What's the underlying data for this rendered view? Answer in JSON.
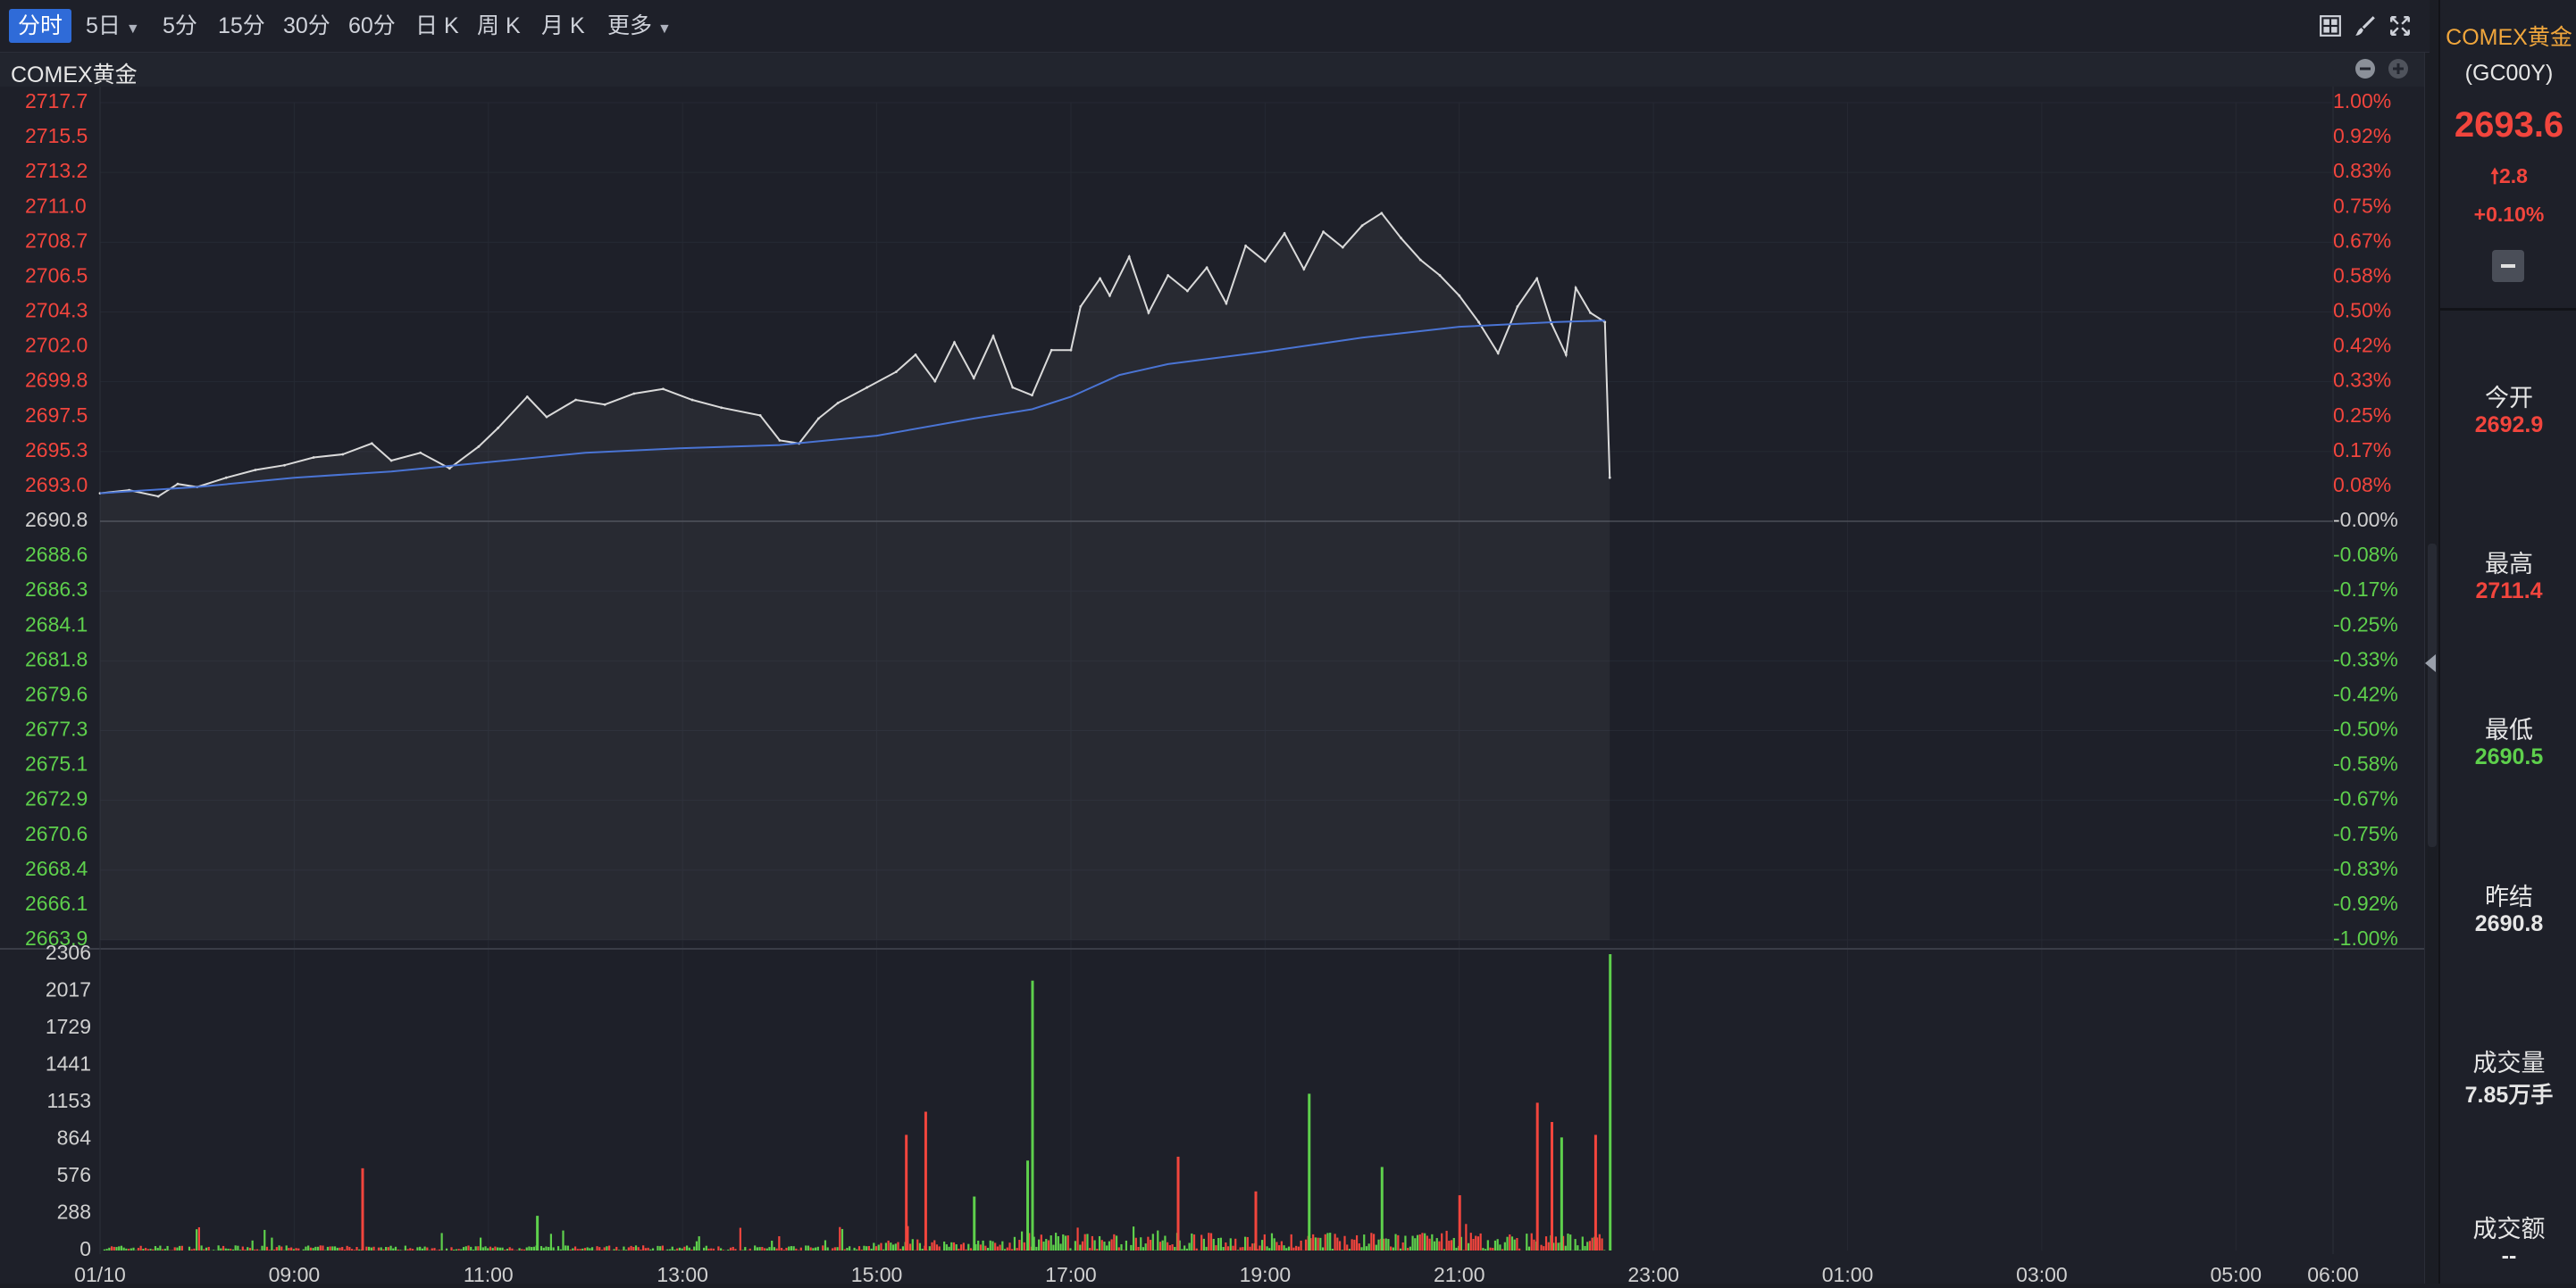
{
  "toolbar": {
    "intervals": [
      "分时",
      "5日",
      "5分",
      "15分",
      "30分",
      "60分",
      "日 K",
      "周 K",
      "月 K",
      "更多"
    ],
    "active": "分时",
    "icons": [
      "grid-icon",
      "brush-icon",
      "fullscreen-icon"
    ]
  },
  "chart_header": {
    "title": "COMEX黄金",
    "icons": [
      "zoom-out-icon",
      "zoom-in-icon"
    ]
  },
  "colors": {
    "up": "#f2453d",
    "down": "#5ed04c",
    "price_line": "#dadada",
    "avg_line": "#4a74d4",
    "accent": "#2f6bd8",
    "title_accent": "#f0a63c"
  },
  "chart_data": {
    "type": "line",
    "price_axis": {
      "ticks_up": [
        "2717.7",
        "2715.5",
        "2713.2",
        "2711.0",
        "2708.7",
        "2706.5",
        "2704.3",
        "2702.0",
        "2699.8",
        "2697.5",
        "2695.3",
        "2693.0"
      ],
      "tick_mid": "2690.8",
      "ticks_down": [
        "2688.6",
        "2686.3",
        "2684.1",
        "2681.8",
        "2679.6",
        "2677.3",
        "2675.1",
        "2672.9",
        "2670.6",
        "2668.4",
        "2666.1",
        "2663.9"
      ],
      "ylim": [
        2663.9,
        2717.7
      ]
    },
    "pct_axis": {
      "ticks_up": [
        "1.00%",
        "0.92%",
        "0.83%",
        "0.75%",
        "0.67%",
        "0.58%",
        "0.50%",
        "0.42%",
        "0.33%",
        "0.25%",
        "0.17%",
        "0.08%"
      ],
      "tick_mid": "-0.00%",
      "ticks_down": [
        "-0.08%",
        "-0.17%",
        "-0.25%",
        "-0.33%",
        "-0.42%",
        "-0.50%",
        "-0.58%",
        "-0.67%",
        "-0.75%",
        "-0.83%",
        "-0.92%",
        "-1.00%"
      ]
    },
    "volume_axis": {
      "ticks": [
        "2306",
        "2017",
        "1729",
        "1441",
        "1153",
        "864",
        "576",
        "288",
        "0"
      ],
      "ylim": [
        0,
        2306
      ]
    },
    "x_labels": [
      "01/10",
      "09:00",
      "11:00",
      "13:00",
      "15:00",
      "17:00",
      "19:00",
      "21:00",
      "23:00",
      "01:00",
      "03:00",
      "05:00",
      "06:00"
    ],
    "x_hours": [
      7,
      9,
      11,
      13,
      15,
      17,
      19,
      21,
      23,
      25,
      27,
      29,
      30
    ],
    "x_range_hours": [
      7,
      30
    ],
    "price_series": [
      {
        "t": 7.0,
        "p": 2692.6
      },
      {
        "t": 7.3,
        "p": 2692.8
      },
      {
        "t": 7.6,
        "p": 2692.4
      },
      {
        "t": 7.8,
        "p": 2693.2
      },
      {
        "t": 8.0,
        "p": 2693.0
      },
      {
        "t": 8.3,
        "p": 2693.6
      },
      {
        "t": 8.6,
        "p": 2694.1
      },
      {
        "t": 8.9,
        "p": 2694.4
      },
      {
        "t": 9.2,
        "p": 2694.9
      },
      {
        "t": 9.5,
        "p": 2695.1
      },
      {
        "t": 9.8,
        "p": 2695.8
      },
      {
        "t": 10.0,
        "p": 2694.7
      },
      {
        "t": 10.3,
        "p": 2695.2
      },
      {
        "t": 10.6,
        "p": 2694.2
      },
      {
        "t": 10.9,
        "p": 2695.6
      },
      {
        "t": 11.1,
        "p": 2696.8
      },
      {
        "t": 11.4,
        "p": 2698.8
      },
      {
        "t": 11.6,
        "p": 2697.5
      },
      {
        "t": 11.9,
        "p": 2698.6
      },
      {
        "t": 12.2,
        "p": 2698.3
      },
      {
        "t": 12.5,
        "p": 2699.0
      },
      {
        "t": 12.8,
        "p": 2699.3
      },
      {
        "t": 13.1,
        "p": 2698.6
      },
      {
        "t": 13.4,
        "p": 2698.1
      },
      {
        "t": 13.8,
        "p": 2697.6
      },
      {
        "t": 14.0,
        "p": 2696.0
      },
      {
        "t": 14.2,
        "p": 2695.8
      },
      {
        "t": 14.4,
        "p": 2697.4
      },
      {
        "t": 14.6,
        "p": 2698.4
      },
      {
        "t": 14.9,
        "p": 2699.4
      },
      {
        "t": 15.2,
        "p": 2700.4
      },
      {
        "t": 15.4,
        "p": 2701.5
      },
      {
        "t": 15.6,
        "p": 2699.8
      },
      {
        "t": 15.8,
        "p": 2702.3
      },
      {
        "t": 16.0,
        "p": 2700.0
      },
      {
        "t": 16.2,
        "p": 2702.7
      },
      {
        "t": 16.4,
        "p": 2699.4
      },
      {
        "t": 16.6,
        "p": 2698.9
      },
      {
        "t": 16.8,
        "p": 2701.8
      },
      {
        "t": 17.0,
        "p": 2701.8
      },
      {
        "t": 17.1,
        "p": 2704.6
      },
      {
        "t": 17.3,
        "p": 2706.4
      },
      {
        "t": 17.4,
        "p": 2705.3
      },
      {
        "t": 17.6,
        "p": 2707.8
      },
      {
        "t": 17.8,
        "p": 2704.2
      },
      {
        "t": 18.0,
        "p": 2706.6
      },
      {
        "t": 18.2,
        "p": 2705.6
      },
      {
        "t": 18.4,
        "p": 2707.1
      },
      {
        "t": 18.6,
        "p": 2704.8
      },
      {
        "t": 18.8,
        "p": 2708.5
      },
      {
        "t": 19.0,
        "p": 2707.5
      },
      {
        "t": 19.2,
        "p": 2709.3
      },
      {
        "t": 19.4,
        "p": 2707.0
      },
      {
        "t": 19.6,
        "p": 2709.4
      },
      {
        "t": 19.8,
        "p": 2708.4
      },
      {
        "t": 20.0,
        "p": 2709.8
      },
      {
        "t": 20.2,
        "p": 2710.6
      },
      {
        "t": 20.4,
        "p": 2709.0
      },
      {
        "t": 20.6,
        "p": 2707.6
      },
      {
        "t": 20.8,
        "p": 2706.6
      },
      {
        "t": 21.0,
        "p": 2705.3
      },
      {
        "t": 21.2,
        "p": 2703.6
      },
      {
        "t": 21.4,
        "p": 2701.6
      },
      {
        "t": 21.6,
        "p": 2704.6
      },
      {
        "t": 21.8,
        "p": 2706.4
      },
      {
        "t": 21.95,
        "p": 2703.5
      },
      {
        "t": 22.1,
        "p": 2701.5
      },
      {
        "t": 22.2,
        "p": 2705.8
      },
      {
        "t": 22.35,
        "p": 2704.2
      },
      {
        "t": 22.5,
        "p": 2703.6
      },
      {
        "t": 22.55,
        "p": 2693.6
      }
    ],
    "avg_series": [
      {
        "t": 7.0,
        "p": 2692.6
      },
      {
        "t": 8.0,
        "p": 2693.0
      },
      {
        "t": 9.0,
        "p": 2693.6
      },
      {
        "t": 10.0,
        "p": 2694.0
      },
      {
        "t": 11.0,
        "p": 2694.6
      },
      {
        "t": 12.0,
        "p": 2695.2
      },
      {
        "t": 13.0,
        "p": 2695.5
      },
      {
        "t": 14.0,
        "p": 2695.7
      },
      {
        "t": 15.0,
        "p": 2696.3
      },
      {
        "t": 16.0,
        "p": 2697.4
      },
      {
        "t": 16.6,
        "p": 2698.0
      },
      {
        "t": 17.0,
        "p": 2698.8
      },
      {
        "t": 17.5,
        "p": 2700.2
      },
      {
        "t": 18.0,
        "p": 2700.9
      },
      {
        "t": 19.0,
        "p": 2701.7
      },
      {
        "t": 20.0,
        "p": 2702.6
      },
      {
        "t": 21.0,
        "p": 2703.3
      },
      {
        "t": 22.0,
        "p": 2703.6
      },
      {
        "t": 22.5,
        "p": 2703.7
      }
    ],
    "volume_spikes": [
      {
        "t": 9.7,
        "v": 640,
        "c": "red"
      },
      {
        "t": 11.5,
        "v": 270,
        "c": "green"
      },
      {
        "t": 15.3,
        "v": 900,
        "c": "red"
      },
      {
        "t": 15.5,
        "v": 1080,
        "c": "red"
      },
      {
        "t": 16.0,
        "v": 420,
        "c": "green"
      },
      {
        "t": 16.6,
        "v": 2100,
        "c": "green"
      },
      {
        "t": 16.55,
        "v": 700,
        "c": "green"
      },
      {
        "t": 18.1,
        "v": 730,
        "c": "red"
      },
      {
        "t": 18.9,
        "v": 460,
        "c": "red"
      },
      {
        "t": 19.45,
        "v": 1220,
        "c": "green"
      },
      {
        "t": 20.2,
        "v": 650,
        "c": "green"
      },
      {
        "t": 21.0,
        "v": 430,
        "c": "red"
      },
      {
        "t": 21.8,
        "v": 1150,
        "c": "red"
      },
      {
        "t": 21.95,
        "v": 1000,
        "c": "red"
      },
      {
        "t": 22.05,
        "v": 880,
        "c": "green"
      },
      {
        "t": 22.4,
        "v": 900,
        "c": "red"
      },
      {
        "t": 22.55,
        "v": 2306,
        "c": "green"
      }
    ]
  },
  "side_panel": {
    "name": "COMEX黄金",
    "code": "(GC00Y)",
    "price": "2693.6",
    "change": "2.8",
    "change_pct": "+0.10%",
    "stats": [
      {
        "label": "今开",
        "value": "2692.9",
        "tone": "red"
      },
      {
        "label": "最高",
        "value": "2711.4",
        "tone": "red"
      },
      {
        "label": "最低",
        "value": "2690.5",
        "tone": "green"
      },
      {
        "label": "昨结",
        "value": "2690.8",
        "tone": "white"
      },
      {
        "label": "成交量",
        "value": "7.85万手",
        "tone": "white"
      },
      {
        "label": "成交额",
        "value": "--",
        "tone": "white"
      }
    ]
  }
}
